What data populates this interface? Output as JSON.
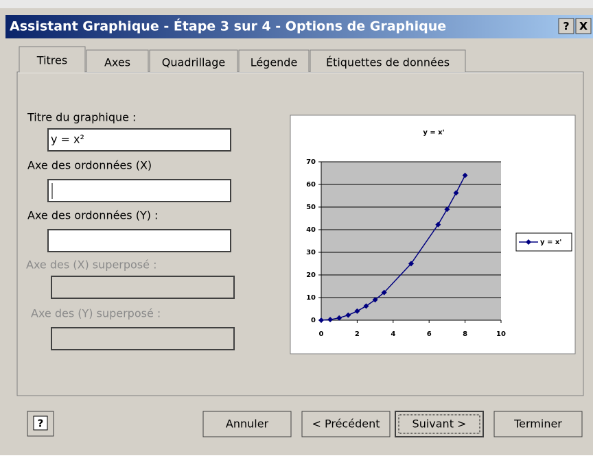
{
  "dialog": {
    "title": "Assistant Graphique - Étape 3 sur 4 - Options de Graphique",
    "title_buttons": [
      "?",
      "X"
    ],
    "tabs": [
      "Titres",
      "Axes",
      "Quadrillage",
      "Légende",
      "Étiquettes de données"
    ],
    "fields": [
      {
        "label": "Titre du graphique :",
        "value": "y = x²",
        "enabled": true
      },
      {
        "label": "Axe des ordonnées (X)",
        "value": "",
        "enabled": true
      },
      {
        "label": "Axe des ordonnées (Y) :",
        "value": "",
        "enabled": true
      },
      {
        "label": "Axe des (X)  superposé :",
        "value": "",
        "enabled": false
      },
      {
        "label": "Axe des (Y) superposé :",
        "value": "",
        "enabled": false
      }
    ],
    "help_icon": "?",
    "buttons": [
      "Annuler",
      "< Précédent",
      "Suivant >",
      "Terminer"
    ]
  },
  "chart_data": {
    "type": "line",
    "title": "y = x'",
    "x": [
      0,
      0.5,
      1,
      1.5,
      2,
      2.5,
      3,
      3.5,
      5,
      6.5,
      7,
      7.5,
      8
    ],
    "series": [
      {
        "name": "y = x'",
        "color": "#000080",
        "values": [
          0,
          0.25,
          1,
          2.25,
          4,
          6.25,
          9,
          12.25,
          25,
          42.25,
          49,
          56.25,
          64
        ]
      }
    ],
    "xlim": [
      0,
      10
    ],
    "xticks": [
      0,
      2,
      4,
      6,
      8,
      10
    ],
    "ylim": [
      0,
      70
    ],
    "yticks": [
      0,
      10,
      20,
      30,
      40,
      50,
      60,
      70
    ],
    "grid": true,
    "legend": "right"
  }
}
